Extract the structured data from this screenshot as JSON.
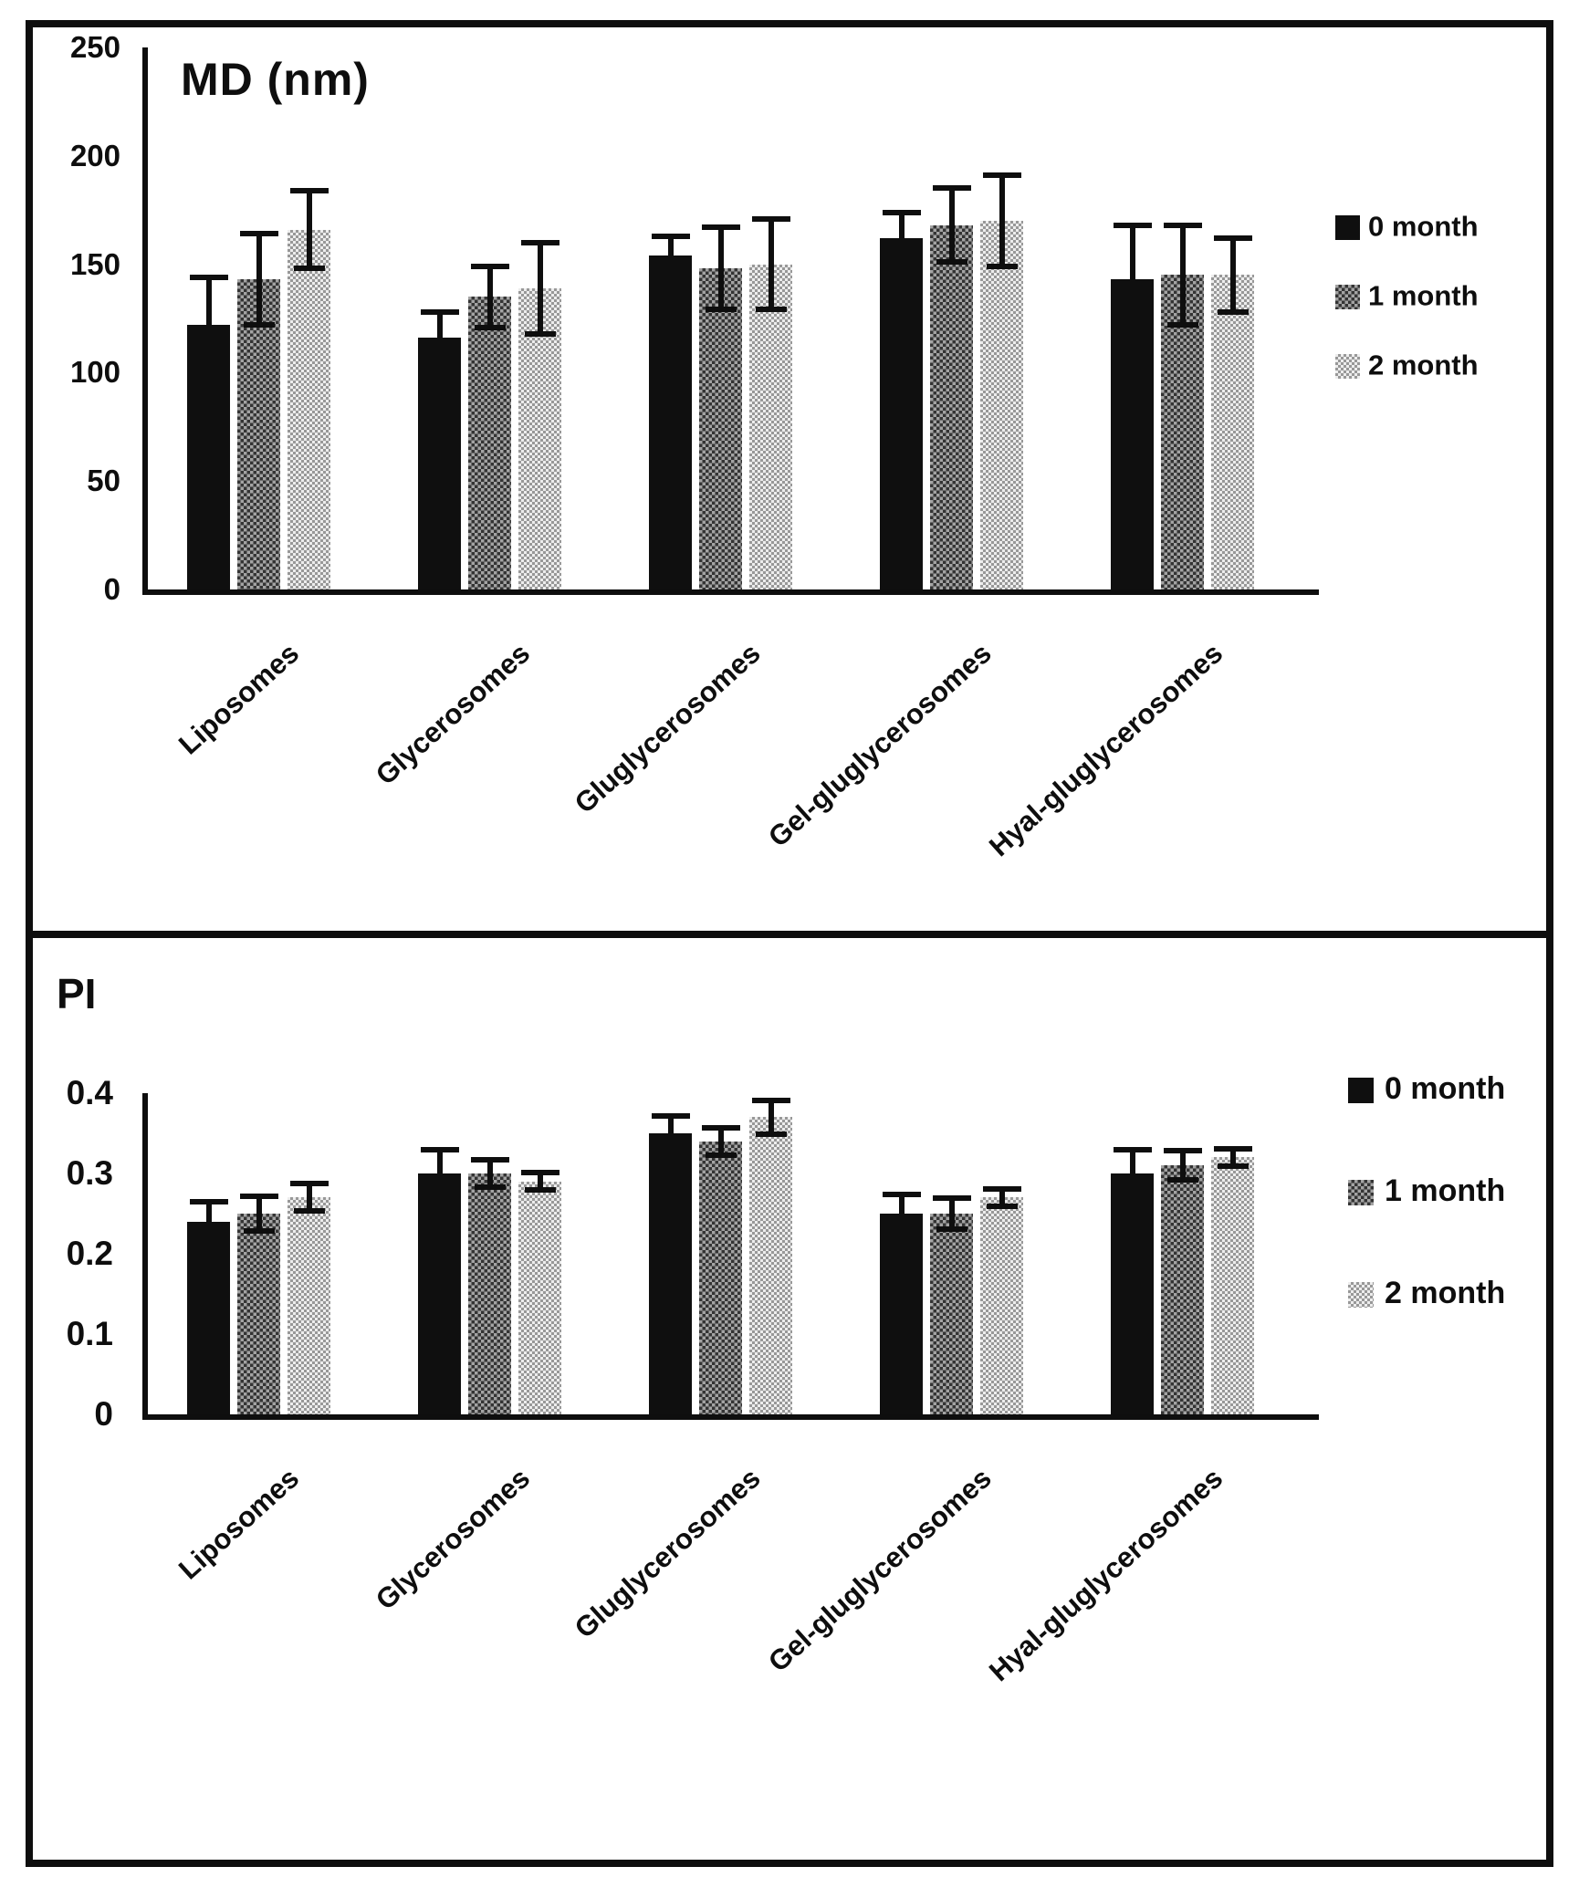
{
  "figure": {
    "description": "Two-panel grouped bar chart figure comparing vesicle formulations over storage time",
    "background": "#ffffff",
    "border_color": "#0e0e0e",
    "series_style_notes": {
      "0 month": "solid black bar",
      "1 month": "dark gray checkered/halftone bar",
      "2 month": "light gray checkered/halftone bar"
    }
  },
  "chart_data": [
    {
      "type": "bar",
      "panel": "top",
      "title": "MD (nm)",
      "categories": [
        "Liposomes",
        "Glycerosomes",
        "Gluglycerosomes",
        "Gel-gluglycerosomes",
        "Hyal-gluglycerosomes"
      ],
      "series": [
        {
          "name": "0 month",
          "values": [
            122,
            116,
            154,
            162,
            143
          ],
          "errors": [
            22,
            12,
            9,
            12,
            25
          ]
        },
        {
          "name": "1 month",
          "values": [
            143,
            135,
            148,
            168,
            145
          ],
          "errors": [
            21,
            14,
            19,
            17,
            23
          ]
        },
        {
          "name": "2 month",
          "values": [
            166,
            139,
            150,
            170,
            145
          ],
          "errors": [
            18,
            21,
            21,
            21,
            17
          ]
        }
      ],
      "ylim": [
        0,
        250
      ],
      "ytick_labels": [
        "0",
        "50",
        "100",
        "150",
        "200",
        "250"
      ],
      "xlabel": "",
      "ylabel": "",
      "grid": false,
      "legend_position": "right",
      "error_bars": "plus-minus on gray series, upper only visible on black series"
    },
    {
      "type": "bar",
      "panel": "bottom",
      "title": "PI",
      "categories": [
        "Liposomes",
        "Glycerosomes",
        "Gluglycerosomes",
        "Gel-gluglycerosomes",
        "Hyal-gluglycerosomes"
      ],
      "series": [
        {
          "name": "0 month",
          "values": [
            0.24,
            0.3,
            0.35,
            0.25,
            0.3
          ],
          "errors": [
            0.025,
            0.03,
            0.022,
            0.024,
            0.03
          ]
        },
        {
          "name": "1 month",
          "values": [
            0.25,
            0.3,
            0.34,
            0.25,
            0.31
          ],
          "errors": [
            0.022,
            0.017,
            0.017,
            0.019,
            0.018
          ]
        },
        {
          "name": "2 month",
          "values": [
            0.27,
            0.29,
            0.37,
            0.27,
            0.32
          ],
          "errors": [
            0.017,
            0.011,
            0.021,
            0.011,
            0.011
          ]
        }
      ],
      "ylim": [
        0,
        0.4
      ],
      "ytick_labels": [
        "0",
        "0.1",
        "0.2",
        "0.3",
        "0.4"
      ],
      "xlabel": "",
      "ylabel": "",
      "grid": false,
      "legend_position": "right",
      "error_bars": "plus-minus on gray series, upper only visible on black series"
    }
  ]
}
